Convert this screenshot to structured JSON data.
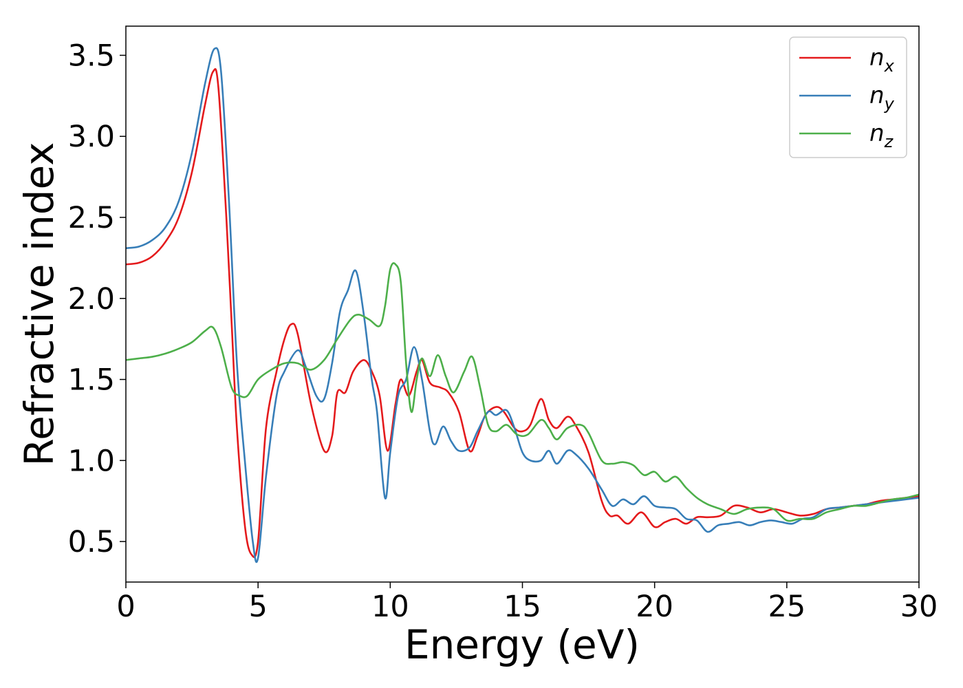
{
  "chart_data": {
    "type": "line",
    "xlabel": "Energy (eV)",
    "ylabel": "Refractive index",
    "xlim": [
      0,
      30
    ],
    "ylim": [
      0.25,
      3.68
    ],
    "xticks": [
      0,
      5,
      10,
      15,
      20,
      25,
      30
    ],
    "yticks": [
      0.5,
      1.0,
      1.5,
      2.0,
      2.5,
      3.0,
      3.5
    ],
    "xtick_labels": [
      "0",
      "5",
      "10",
      "15",
      "20",
      "25",
      "30"
    ],
    "ytick_labels": [
      "0.5",
      "1.0",
      "1.5",
      "2.0",
      "2.5",
      "3.0",
      "3.5"
    ],
    "grid": false,
    "legend_position": "top-right",
    "series": [
      {
        "name": "n_x",
        "label_main": "n",
        "label_sub": "x",
        "color": "#e41a1c",
        "points": [
          [
            0,
            2.21
          ],
          [
            0.5,
            2.22
          ],
          [
            1,
            2.26
          ],
          [
            1.5,
            2.35
          ],
          [
            2,
            2.5
          ],
          [
            2.5,
            2.78
          ],
          [
            3,
            3.2
          ],
          [
            3.3,
            3.4
          ],
          [
            3.5,
            3.3
          ],
          [
            3.8,
            2.5
          ],
          [
            4,
            1.85
          ],
          [
            4.2,
            1.2
          ],
          [
            4.5,
            0.6
          ],
          [
            4.75,
            0.42
          ],
          [
            5,
            0.5
          ],
          [
            5.3,
            1.2
          ],
          [
            5.7,
            1.55
          ],
          [
            6,
            1.75
          ],
          [
            6.25,
            1.84
          ],
          [
            6.5,
            1.78
          ],
          [
            7,
            1.35
          ],
          [
            7.5,
            1.06
          ],
          [
            7.8,
            1.15
          ],
          [
            8,
            1.42
          ],
          [
            8.3,
            1.42
          ],
          [
            8.6,
            1.55
          ],
          [
            9,
            1.62
          ],
          [
            9.3,
            1.55
          ],
          [
            9.6,
            1.4
          ],
          [
            9.9,
            1.06
          ],
          [
            10.2,
            1.35
          ],
          [
            10.4,
            1.5
          ],
          [
            10.7,
            1.4
          ],
          [
            11,
            1.55
          ],
          [
            11.2,
            1.62
          ],
          [
            11.5,
            1.48
          ],
          [
            11.9,
            1.45
          ],
          [
            12.2,
            1.42
          ],
          [
            12.6,
            1.3
          ],
          [
            13,
            1.06
          ],
          [
            13.3,
            1.15
          ],
          [
            13.6,
            1.28
          ],
          [
            14,
            1.33
          ],
          [
            14.3,
            1.3
          ],
          [
            14.7,
            1.2
          ],
          [
            15,
            1.18
          ],
          [
            15.3,
            1.22
          ],
          [
            15.7,
            1.38
          ],
          [
            16,
            1.25
          ],
          [
            16.3,
            1.2
          ],
          [
            16.7,
            1.27
          ],
          [
            17,
            1.22
          ],
          [
            17.5,
            1.05
          ],
          [
            18,
            0.75
          ],
          [
            18.3,
            0.66
          ],
          [
            18.6,
            0.66
          ],
          [
            19,
            0.61
          ],
          [
            19.5,
            0.68
          ],
          [
            20,
            0.59
          ],
          [
            20.4,
            0.62
          ],
          [
            20.8,
            0.64
          ],
          [
            21.2,
            0.61
          ],
          [
            21.6,
            0.65
          ],
          [
            22,
            0.65
          ],
          [
            22.5,
            0.66
          ],
          [
            23,
            0.72
          ],
          [
            23.5,
            0.71
          ],
          [
            24,
            0.68
          ],
          [
            24.5,
            0.7
          ],
          [
            25,
            0.68
          ],
          [
            25.5,
            0.66
          ],
          [
            26,
            0.67
          ],
          [
            26.5,
            0.7
          ],
          [
            27,
            0.71
          ],
          [
            27.5,
            0.72
          ],
          [
            28,
            0.73
          ],
          [
            28.5,
            0.75
          ],
          [
            29,
            0.76
          ],
          [
            29.5,
            0.77
          ],
          [
            30,
            0.78
          ]
        ]
      },
      {
        "name": "n_y",
        "label_main": "n",
        "label_sub": "y",
        "color": "#377eb8",
        "points": [
          [
            0,
            2.31
          ],
          [
            0.5,
            2.32
          ],
          [
            1,
            2.36
          ],
          [
            1.5,
            2.44
          ],
          [
            2,
            2.6
          ],
          [
            2.5,
            2.9
          ],
          [
            3,
            3.33
          ],
          [
            3.35,
            3.54
          ],
          [
            3.6,
            3.4
          ],
          [
            3.9,
            2.6
          ],
          [
            4.2,
            1.6
          ],
          [
            4.5,
            1.0
          ],
          [
            4.8,
            0.5
          ],
          [
            5,
            0.4
          ],
          [
            5.3,
            0.9
          ],
          [
            5.7,
            1.4
          ],
          [
            6,
            1.55
          ],
          [
            6.5,
            1.68
          ],
          [
            6.8,
            1.58
          ],
          [
            7.2,
            1.4
          ],
          [
            7.5,
            1.38
          ],
          [
            7.8,
            1.6
          ],
          [
            8.1,
            1.92
          ],
          [
            8.4,
            2.05
          ],
          [
            8.7,
            2.17
          ],
          [
            9,
            1.9
          ],
          [
            9.3,
            1.5
          ],
          [
            9.5,
            1.3
          ],
          [
            9.8,
            0.77
          ],
          [
            10,
            1.05
          ],
          [
            10.3,
            1.4
          ],
          [
            10.6,
            1.5
          ],
          [
            10.9,
            1.7
          ],
          [
            11.2,
            1.5
          ],
          [
            11.5,
            1.18
          ],
          [
            11.7,
            1.1
          ],
          [
            12,
            1.21
          ],
          [
            12.3,
            1.12
          ],
          [
            12.6,
            1.06
          ],
          [
            13,
            1.08
          ],
          [
            13.3,
            1.18
          ],
          [
            13.7,
            1.3
          ],
          [
            14,
            1.28
          ],
          [
            14.4,
            1.31
          ],
          [
            14.7,
            1.2
          ],
          [
            15,
            1.05
          ],
          [
            15.3,
            1.0
          ],
          [
            15.7,
            1.0
          ],
          [
            16,
            1.06
          ],
          [
            16.3,
            0.98
          ],
          [
            16.7,
            1.06
          ],
          [
            17,
            1.04
          ],
          [
            17.5,
            0.95
          ],
          [
            18,
            0.82
          ],
          [
            18.4,
            0.72
          ],
          [
            18.8,
            0.76
          ],
          [
            19.2,
            0.73
          ],
          [
            19.6,
            0.78
          ],
          [
            20,
            0.72
          ],
          [
            20.4,
            0.71
          ],
          [
            20.8,
            0.7
          ],
          [
            21.2,
            0.64
          ],
          [
            21.6,
            0.63
          ],
          [
            22,
            0.56
          ],
          [
            22.4,
            0.6
          ],
          [
            22.8,
            0.61
          ],
          [
            23.2,
            0.62
          ],
          [
            23.6,
            0.6
          ],
          [
            24,
            0.62
          ],
          [
            24.4,
            0.63
          ],
          [
            24.8,
            0.62
          ],
          [
            25.2,
            0.61
          ],
          [
            25.6,
            0.64
          ],
          [
            26,
            0.65
          ],
          [
            26.5,
            0.7
          ],
          [
            27,
            0.71
          ],
          [
            27.5,
            0.72
          ],
          [
            28,
            0.73
          ],
          [
            28.5,
            0.74
          ],
          [
            29,
            0.75
          ],
          [
            29.5,
            0.76
          ],
          [
            30,
            0.77
          ]
        ]
      },
      {
        "name": "n_z",
        "label_main": "n",
        "label_sub": "z",
        "color": "#4daf4a",
        "points": [
          [
            0,
            1.62
          ],
          [
            0.5,
            1.63
          ],
          [
            1,
            1.64
          ],
          [
            1.5,
            1.66
          ],
          [
            2,
            1.69
          ],
          [
            2.5,
            1.73
          ],
          [
            3,
            1.8
          ],
          [
            3.3,
            1.82
          ],
          [
            3.6,
            1.7
          ],
          [
            4,
            1.45
          ],
          [
            4.3,
            1.4
          ],
          [
            4.6,
            1.4
          ],
          [
            5,
            1.5
          ],
          [
            5.5,
            1.56
          ],
          [
            6,
            1.6
          ],
          [
            6.5,
            1.6
          ],
          [
            7,
            1.56
          ],
          [
            7.5,
            1.62
          ],
          [
            8,
            1.75
          ],
          [
            8.5,
            1.87
          ],
          [
            8.8,
            1.9
          ],
          [
            9.2,
            1.87
          ],
          [
            9.6,
            1.83
          ],
          [
            9.8,
            1.95
          ],
          [
            10,
            2.18
          ],
          [
            10.2,
            2.21
          ],
          [
            10.4,
            2.1
          ],
          [
            10.6,
            1.6
          ],
          [
            10.8,
            1.3
          ],
          [
            11,
            1.5
          ],
          [
            11.2,
            1.63
          ],
          [
            11.5,
            1.52
          ],
          [
            11.8,
            1.65
          ],
          [
            12.1,
            1.52
          ],
          [
            12.4,
            1.42
          ],
          [
            12.8,
            1.55
          ],
          [
            13.1,
            1.64
          ],
          [
            13.4,
            1.45
          ],
          [
            13.7,
            1.22
          ],
          [
            14,
            1.18
          ],
          [
            14.4,
            1.22
          ],
          [
            14.8,
            1.16
          ],
          [
            15.2,
            1.16
          ],
          [
            15.7,
            1.25
          ],
          [
            16,
            1.2
          ],
          [
            16.3,
            1.13
          ],
          [
            16.7,
            1.2
          ],
          [
            17.2,
            1.22
          ],
          [
            17.5,
            1.17
          ],
          [
            18,
            1.0
          ],
          [
            18.4,
            0.98
          ],
          [
            18.8,
            0.99
          ],
          [
            19.2,
            0.97
          ],
          [
            19.6,
            0.91
          ],
          [
            20,
            0.93
          ],
          [
            20.4,
            0.87
          ],
          [
            20.8,
            0.9
          ],
          [
            21.2,
            0.83
          ],
          [
            21.6,
            0.77
          ],
          [
            22,
            0.73
          ],
          [
            22.5,
            0.7
          ],
          [
            23,
            0.67
          ],
          [
            23.5,
            0.7
          ],
          [
            24,
            0.71
          ],
          [
            24.5,
            0.7
          ],
          [
            25,
            0.63
          ],
          [
            25.5,
            0.64
          ],
          [
            26,
            0.64
          ],
          [
            26.5,
            0.68
          ],
          [
            27,
            0.7
          ],
          [
            27.5,
            0.72
          ],
          [
            28,
            0.72
          ],
          [
            28.5,
            0.74
          ],
          [
            29,
            0.76
          ],
          [
            29.5,
            0.77
          ],
          [
            30,
            0.79
          ]
        ]
      }
    ]
  }
}
